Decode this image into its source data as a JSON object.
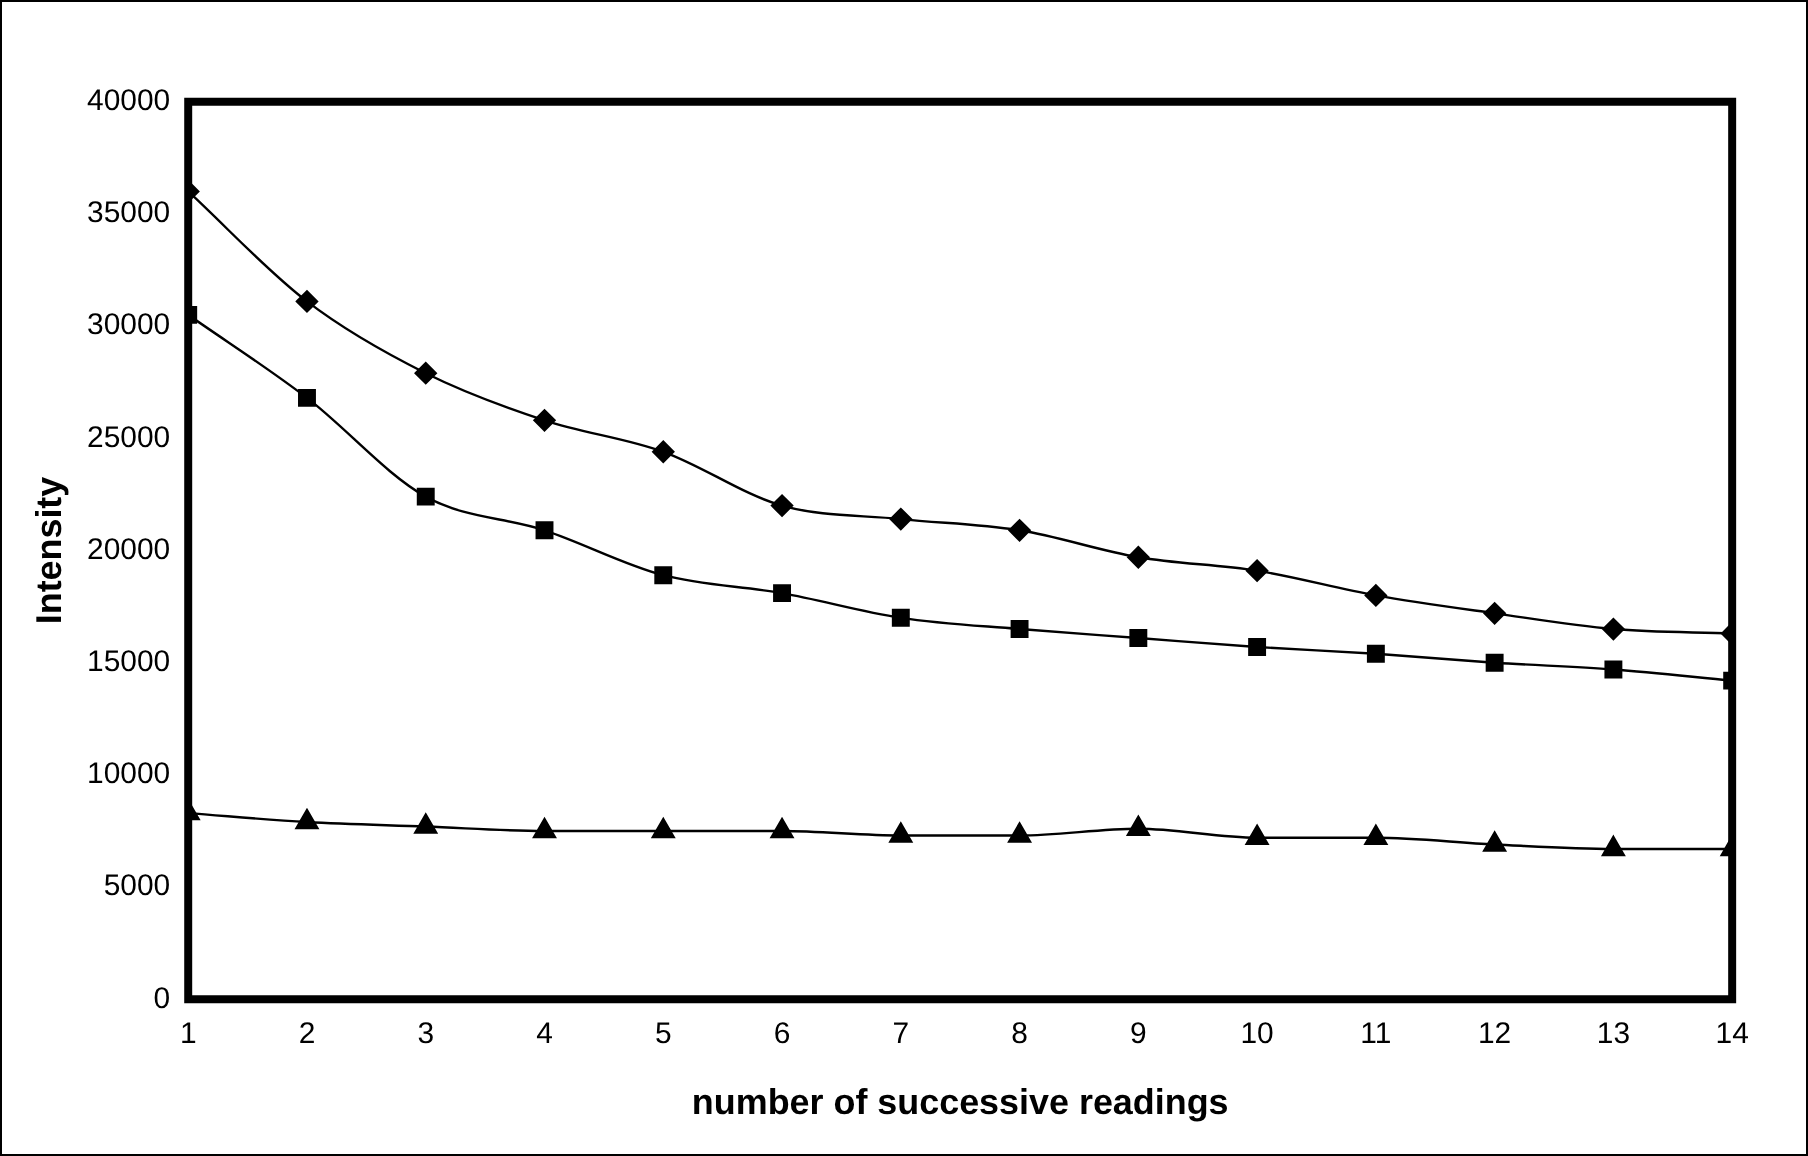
{
  "chart_data": {
    "type": "line",
    "xlabel": "number of successive readings",
    "ylabel": "Intensity",
    "x": [
      1,
      2,
      3,
      4,
      5,
      6,
      7,
      8,
      9,
      10,
      11,
      12,
      13,
      14
    ],
    "series": [
      {
        "color": "#000000",
        "marker": "diamond",
        "values": [
          36000,
          31100,
          27900,
          25800,
          24400,
          22000,
          21400,
          20900,
          19700,
          19100,
          18000,
          17200,
          16500,
          16300
        ]
      },
      {
        "color": "#000000",
        "marker": "square",
        "values": [
          30500,
          26800,
          22400,
          20900,
          18900,
          18100,
          17000,
          16500,
          16100,
          15700,
          15400,
          15000,
          14700,
          14200
        ]
      },
      {
        "color": "#000000",
        "marker": "triangle",
        "values": [
          8300,
          7900,
          7700,
          7500,
          7500,
          7500,
          7300,
          7300,
          7600,
          7200,
          7200,
          6900,
          6700,
          6700
        ]
      }
    ],
    "xlim": [
      1,
      14
    ],
    "xticks": [
      1,
      2,
      3,
      4,
      5,
      6,
      7,
      8,
      9,
      10,
      11,
      12,
      13,
      14
    ],
    "ylim": [
      0,
      40000
    ],
    "yticks": [
      0,
      5000,
      10000,
      15000,
      20000,
      25000,
      30000,
      35000,
      40000
    ],
    "grid": false,
    "legend": false,
    "line_style": "solid"
  }
}
